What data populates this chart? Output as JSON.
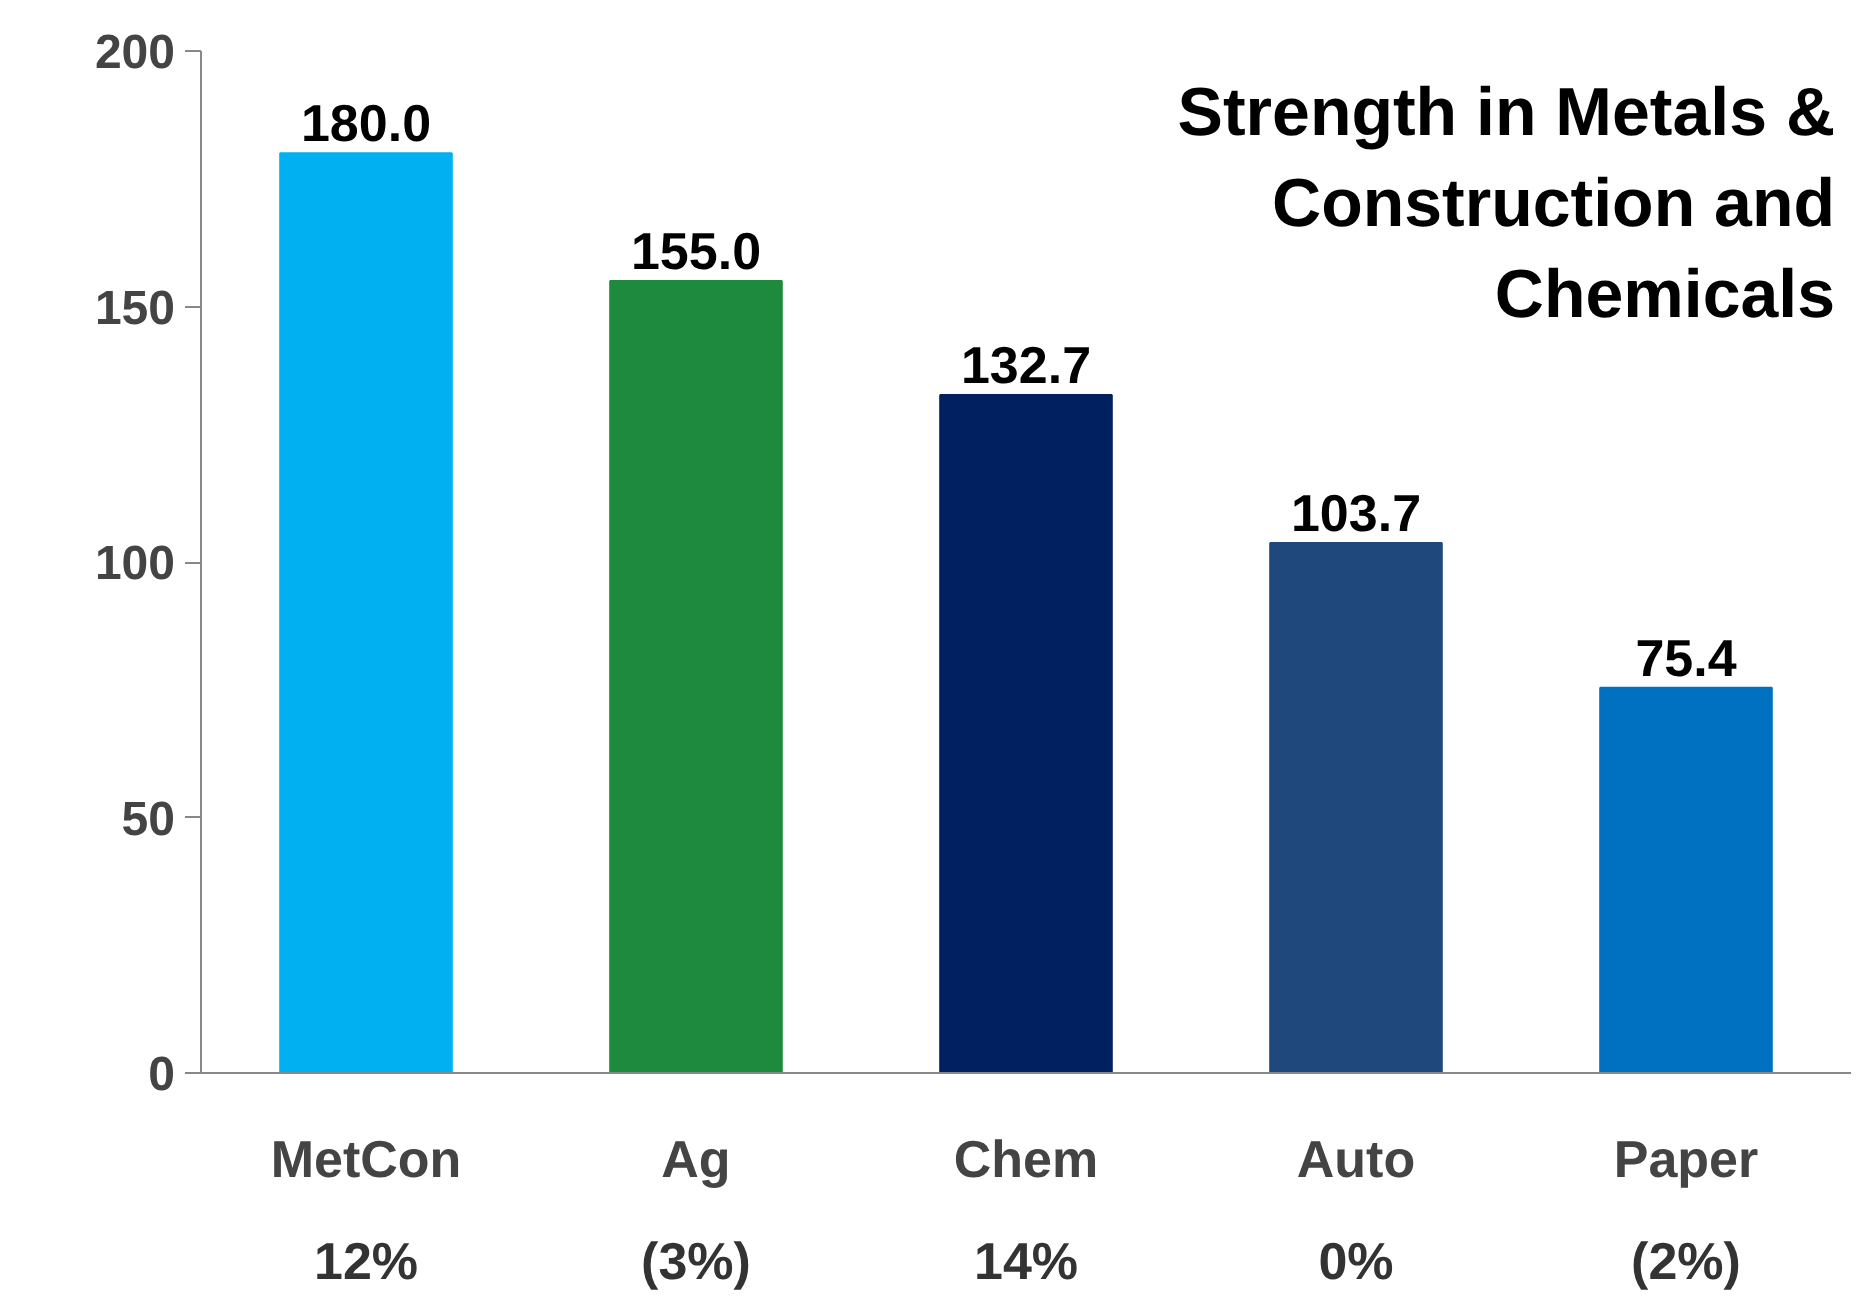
{
  "chart_data": {
    "type": "bar",
    "title": "Strength in Metals & Construction and Chemicals",
    "categories": [
      "MetCon",
      "Ag",
      "Chem",
      "Auto",
      "Paper"
    ],
    "values": [
      180.0,
      155.0,
      132.7,
      103.7,
      75.4
    ],
    "colors": [
      "#00b0f0",
      "#1e8a3e",
      "#002060",
      "#1f497d",
      "#0070c0"
    ],
    "value_labels": [
      "180.0",
      "155.0",
      "132.7",
      "103.7",
      "75.4"
    ],
    "ylim": [
      0,
      200
    ],
    "yticks": [
      0,
      50,
      100,
      150,
      200
    ],
    "grid": false,
    "annotations": [
      "12%",
      "(3%)",
      "14%",
      "0%",
      "(2%)"
    ]
  }
}
